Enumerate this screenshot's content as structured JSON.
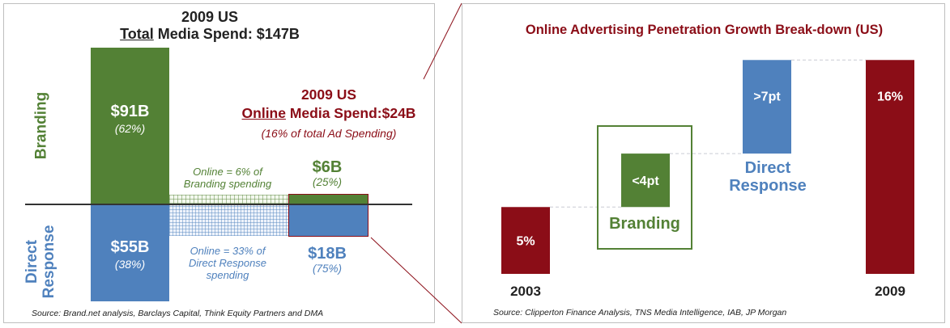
{
  "left": {
    "title_line1": "2009 US",
    "title_word": "Total",
    "title_rest": " Media Spend: $147B",
    "axis_top": "Branding",
    "axis_bottom_line1": "Direct",
    "axis_bottom_line2": "Response",
    "online_title_line1": "2009 US",
    "online_title_word": "Online",
    "online_title_rest": " Media Spend:$24B",
    "online_subtitle": "(16% of total Ad Spending)",
    "note_branding_line1": "Online = 6% of",
    "note_branding_line2": "Branding spending",
    "note_direct_line1": "Online = 33% of",
    "note_direct_line2": "Direct Response",
    "note_direct_line3": "spending",
    "source": "Source: Brand.net analysis, Barclays Capital, Think Equity Partners and DMA",
    "colors": {
      "branding": "#538135",
      "direct": "#4f81bd",
      "online": "#8b0d17"
    }
  },
  "right": {
    "title": "Online Advertising Penetration Growth Break-down (US)",
    "label_branding": "Branding",
    "label_direct_line1": "Direct",
    "label_direct_line2": "Response",
    "source": "Source: Clipperton Finance Analysis, TNS Media Intelligence, IAB, JP Morgan"
  },
  "chart_data": [
    {
      "type": "bar",
      "title": "2009 US Total Media Spend: $147B",
      "categories": [
        "Branding",
        "Direct Response"
      ],
      "series": [
        {
          "name": "Total",
          "values": [
            91,
            55
          ],
          "labels": [
            "$91B",
            "$55B"
          ],
          "shares": [
            "(62%)",
            "(38%)"
          ]
        },
        {
          "name": "Online",
          "values": [
            6,
            18
          ],
          "labels": [
            "$6B",
            "$18B"
          ],
          "shares": [
            "(25%)",
            "(75%)"
          ]
        }
      ]
    },
    {
      "type": "bar",
      "title": "Online Advertising Penetration Growth Break-down (US)",
      "categories": [
        "2003",
        "Branding",
        "Direct Response",
        "2009"
      ],
      "values": [
        5,
        4,
        7,
        16
      ],
      "labels": [
        "5%",
        "<4pt",
        ">7pt",
        "16%"
      ],
      "bases": [
        0,
        5,
        9,
        0
      ],
      "ylim": [
        0,
        16.5
      ]
    }
  ]
}
